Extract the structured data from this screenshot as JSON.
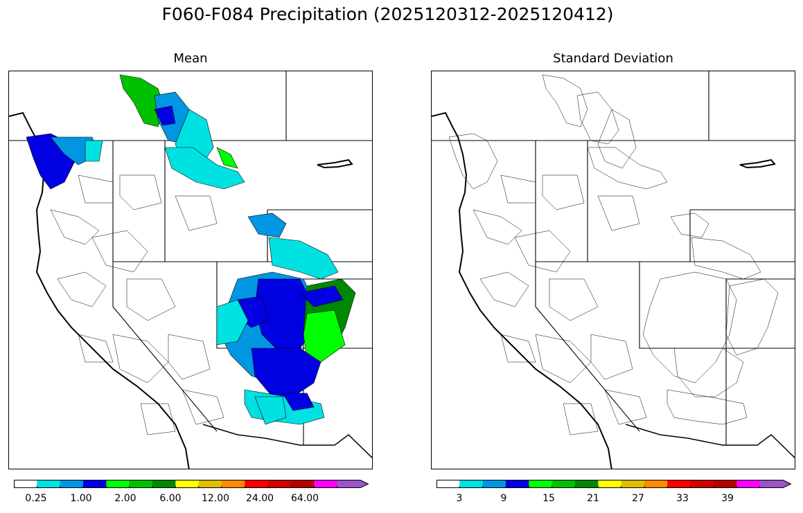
{
  "title": "F060-F084 Precipitation (2025120312-2025120412)",
  "panels": [
    {
      "title": "Mean",
      "colorbar": {
        "colors": [
          "#ffffff",
          "#00e1e1",
          "#0096e1",
          "#0000e1",
          "#00ff00",
          "#00c000",
          "#008800",
          "#ffff00",
          "#e0be00",
          "#ff8c00",
          "#ff0000",
          "#d00000",
          "#b40000",
          "#ff00ff",
          "#9955c8"
        ],
        "tick_labels": [
          "0.25",
          "1.00",
          "2.00",
          "6.00",
          "12.00",
          "24.00",
          "64.00"
        ]
      }
    },
    {
      "title": "Standard Deviation",
      "colorbar": {
        "colors": [
          "#ffffff",
          "#00e1e1",
          "#0096e1",
          "#0000e1",
          "#00ff00",
          "#00c000",
          "#008800",
          "#ffff00",
          "#e0be00",
          "#ff8c00",
          "#ff0000",
          "#d00000",
          "#b40000",
          "#ff00ff",
          "#9955c8"
        ],
        "tick_labels": [
          "3",
          "9",
          "15",
          "21",
          "27",
          "33",
          "39"
        ]
      }
    }
  ]
}
